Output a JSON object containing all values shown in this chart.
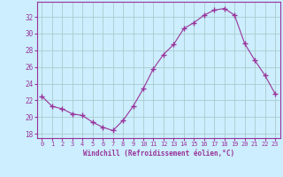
{
  "x": [
    0,
    1,
    2,
    3,
    4,
    5,
    6,
    7,
    8,
    9,
    10,
    11,
    12,
    13,
    14,
    15,
    16,
    17,
    18,
    19,
    20,
    21,
    22,
    23
  ],
  "y": [
    22.5,
    21.3,
    21.0,
    20.4,
    20.2,
    19.4,
    18.8,
    18.4,
    19.6,
    21.3,
    23.4,
    25.8,
    27.5,
    28.7,
    30.6,
    31.3,
    32.2,
    32.8,
    33.0,
    32.2,
    28.8,
    26.8,
    25.0,
    22.8
  ],
  "line_color": "#993399",
  "marker": "+",
  "marker_size": 4,
  "bg_color": "#cceeff",
  "grid_color": "#aacccc",
  "xlabel": "Windchill (Refroidissement éolien,°C)",
  "ylabel": "",
  "ylim": [
    17.5,
    33.8
  ],
  "xlim": [
    -0.5,
    23.5
  ],
  "yticks": [
    18,
    20,
    22,
    24,
    26,
    28,
    30,
    32
  ],
  "xticks": [
    0,
    1,
    2,
    3,
    4,
    5,
    6,
    7,
    8,
    9,
    10,
    11,
    12,
    13,
    14,
    15,
    16,
    17,
    18,
    19,
    20,
    21,
    22,
    23
  ],
  "tick_color": "#993399",
  "label_color": "#993399"
}
